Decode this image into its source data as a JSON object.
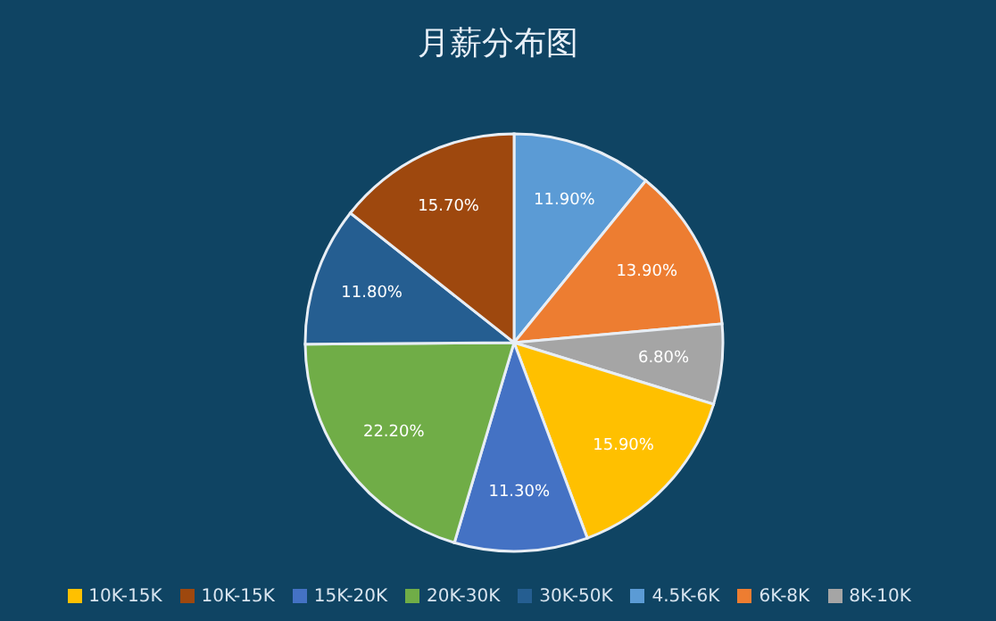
{
  "chart_data": {
    "type": "pie",
    "title": "月薪分布图",
    "categories": [
      "4.5K-6K",
      "6K-8K",
      "8K-10K",
      "10K-15K",
      "15K-20K",
      "20K-30K",
      "30K-50K",
      "10K-15K"
    ],
    "values": [
      11.9,
      13.9,
      6.8,
      15.9,
      11.3,
      22.2,
      11.8,
      15.7
    ],
    "colors": [
      "#5b9bd5",
      "#ed7d31",
      "#a5a5a5",
      "#ffc000",
      "#4472c4",
      "#70ad47",
      "#255e91",
      "#9e480e"
    ],
    "value_labels": [
      "11.90%",
      "13.90%",
      "6.80%",
      "15.90%",
      "11.30%",
      "22.20%",
      "11.80%",
      "15.70%"
    ],
    "legend": "bottom"
  }
}
